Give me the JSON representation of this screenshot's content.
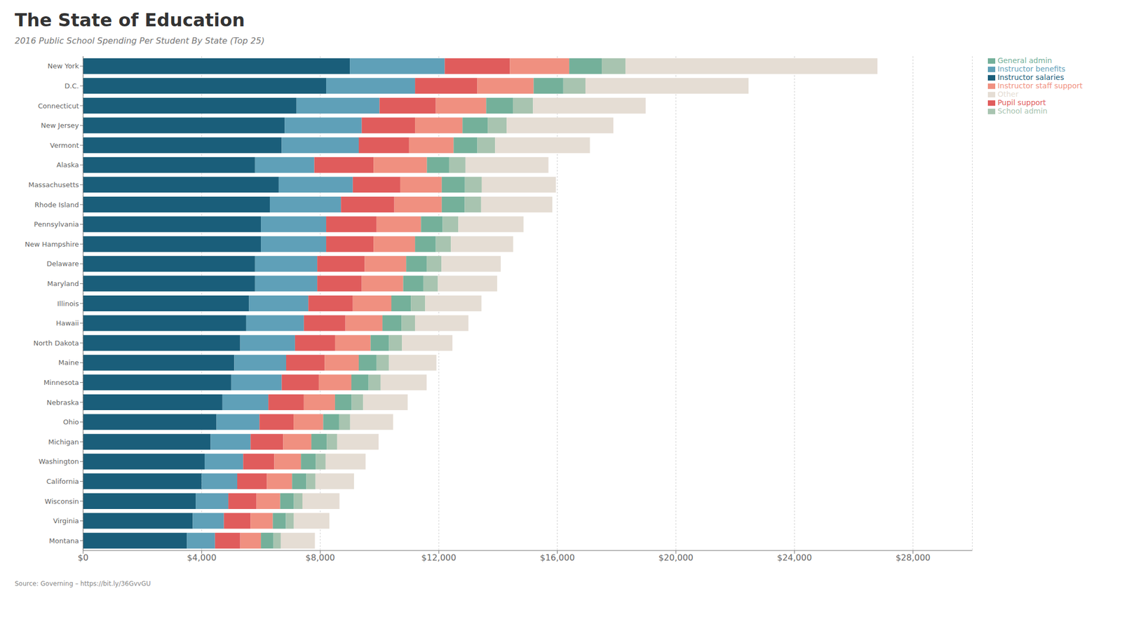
{
  "chart_data": {
    "type": "bar",
    "orientation": "horizontal",
    "stacked": true,
    "title": "The State of Education",
    "subtitle": "2016 Public School Spending Per Student By State  (Top 25)",
    "source": "Source: Governing – https://bit.ly/36GvvGU",
    "categories": [
      "New York",
      "D.C.",
      "Connecticut",
      "New Jersey",
      "Vermont",
      "Alaska",
      "Massachusetts",
      "Rhode Island",
      "Pennsylvania",
      "New Hampshire",
      "Delaware",
      "Maryland",
      "Illinois",
      "Hawaii",
      "North Dakota",
      "Maine",
      "Minnesota",
      "Nebraska",
      "Ohio",
      "Michigan",
      "Washington",
      "California",
      "Wisconsin",
      "Virginia",
      "Montana"
    ],
    "series": [
      {
        "name": "Instructor salaries",
        "color": "#1a5e7a",
        "values": [
          9000,
          8200,
          7200,
          6800,
          6700,
          5800,
          6600,
          6300,
          6000,
          6000,
          5800,
          5800,
          5600,
          5500,
          5300,
          5100,
          5000,
          4700,
          4500,
          4300,
          4100,
          4000,
          3800,
          3700,
          3500
        ]
      },
      {
        "name": "Instructor benefits",
        "color": "#5fa0b8",
        "values": [
          3200,
          3000,
          2800,
          2600,
          2600,
          2000,
          2500,
          2400,
          2200,
          2200,
          2100,
          2100,
          2000,
          1950,
          1850,
          1750,
          1700,
          1550,
          1450,
          1350,
          1300,
          1200,
          1100,
          1050,
          950
        ]
      },
      {
        "name": "Pupil support",
        "color": "#e05c5c",
        "values": [
          2200,
          2100,
          1900,
          1800,
          1700,
          2000,
          1600,
          1800,
          1700,
          1600,
          1600,
          1500,
          1500,
          1400,
          1350,
          1300,
          1250,
          1200,
          1150,
          1100,
          1050,
          1000,
          950,
          900,
          850
        ]
      },
      {
        "name": "Instructor staff support",
        "color": "#f09080",
        "values": [
          2000,
          1900,
          1700,
          1600,
          1500,
          1800,
          1400,
          1600,
          1500,
          1400,
          1400,
          1400,
          1300,
          1250,
          1200,
          1150,
          1100,
          1050,
          1000,
          950,
          900,
          850,
          800,
          750,
          700
        ]
      },
      {
        "name": "General admin",
        "color": "#74b09a",
        "values": [
          1100,
          1000,
          900,
          850,
          800,
          750,
          780,
          770,
          730,
          700,
          690,
          680,
          660,
          640,
          620,
          600,
          580,
          560,
          540,
          520,
          500,
          480,
          460,
          440,
          420
        ]
      },
      {
        "name": "School admin",
        "color": "#a8c4b0",
        "values": [
          800,
          750,
          680,
          640,
          600,
          550,
          570,
          560,
          530,
          510,
          500,
          490,
          480,
          460,
          440,
          420,
          410,
          390,
          370,
          350,
          330,
          310,
          290,
          270,
          250
        ]
      },
      {
        "name": "Other",
        "color": "#e5ddd4",
        "values": [
          8500,
          5500,
          3800,
          3600,
          3200,
          2800,
          2500,
          2400,
          2200,
          2100,
          2000,
          2000,
          1900,
          1800,
          1700,
          1600,
          1550,
          1500,
          1450,
          1400,
          1350,
          1300,
          1250,
          1200,
          1150
        ]
      }
    ],
    "xlim": [
      0,
      30000
    ],
    "xticks": [
      {
        "value": 0,
        "label": "$0"
      },
      {
        "value": 4000,
        "label": "$4,000"
      },
      {
        "value": 8000,
        "label": "$8,000"
      },
      {
        "value": 12000,
        "label": "$12,000"
      },
      {
        "value": 16000,
        "label": "$16,000"
      },
      {
        "value": 20000,
        "label": "$20,000"
      },
      {
        "value": 24000,
        "label": "$24,000"
      },
      {
        "value": 28000,
        "label": "$28,000"
      }
    ],
    "grid": true,
    "legend": "right"
  }
}
